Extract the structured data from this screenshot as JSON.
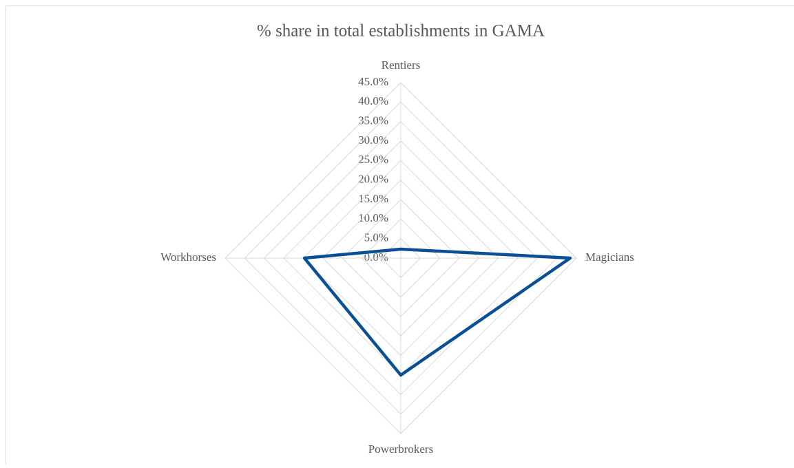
{
  "chart_data": {
    "type": "radar",
    "title": "% share in total establishments in GAMA",
    "categories": [
      "Rentiers",
      "Magicians",
      "Powerbrokers",
      "Workhorses"
    ],
    "values": [
      2.3,
      43.4,
      30.0,
      24.7
    ],
    "color": "#0b4f96",
    "ylim": [
      0,
      45
    ],
    "yticks": [
      {
        "value": 0,
        "label": "0.0%"
      },
      {
        "value": 5,
        "label": "5.0%"
      },
      {
        "value": 10,
        "label": "10.0%"
      },
      {
        "value": 15,
        "label": "15.0%"
      },
      {
        "value": 20,
        "label": "20.0%"
      },
      {
        "value": 25,
        "label": "25.0%"
      },
      {
        "value": 30,
        "label": "30.0%"
      },
      {
        "value": 35,
        "label": "35.0%"
      },
      {
        "value": 40,
        "label": "40.0%"
      },
      {
        "value": 45,
        "label": "45.0%"
      }
    ],
    "grid": true
  }
}
